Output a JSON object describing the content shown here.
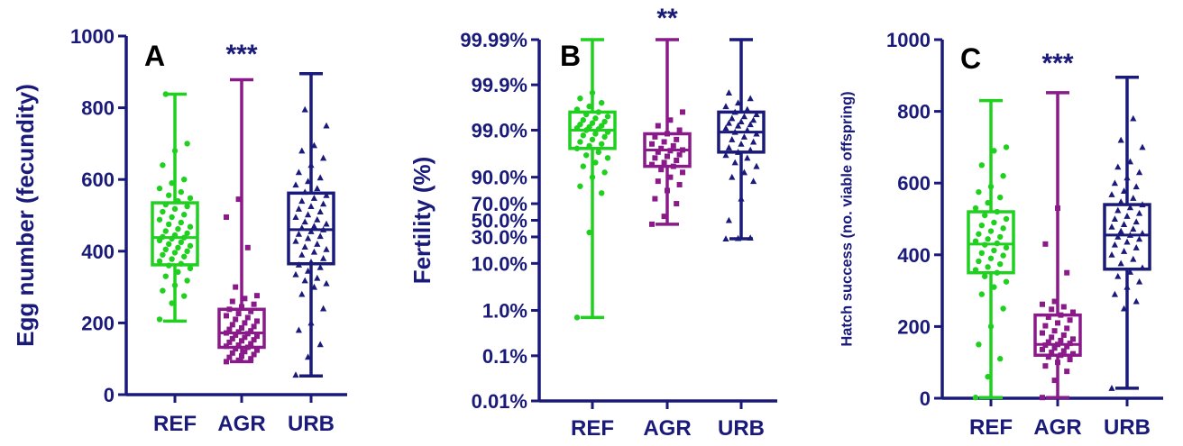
{
  "colors": {
    "axis": "#1a1a7a",
    "REF": "#1fd01f",
    "AGR": "#8a1a8a",
    "URB": "#1a1a7a",
    "stars": "#1a1a7a"
  },
  "chart_data": [
    {
      "type": "box",
      "panel_letter": "A",
      "ylabel": "Egg number (fecundity)",
      "categories": [
        "REF",
        "AGR",
        "URB"
      ],
      "ylim": [
        0,
        1000
      ],
      "yticks": [
        0,
        200,
        400,
        600,
        800,
        1000
      ],
      "yscale": "linear",
      "significance": {
        "category": "AGR",
        "label": "***"
      },
      "series": [
        {
          "name": "REF",
          "whisker_low": 205,
          "q1": 362,
          "median": 438,
          "q3": 535,
          "whisker_high": 838,
          "marker": "circle",
          "points": [
            210,
            255,
            275,
            290,
            305,
            318,
            330,
            342,
            352,
            360,
            365,
            372,
            378,
            385,
            390,
            396,
            400,
            405,
            410,
            415,
            420,
            425,
            430,
            435,
            438,
            440,
            445,
            450,
            456,
            462,
            468,
            475,
            480,
            488,
            495,
            502,
            510,
            518,
            525,
            530,
            540,
            548,
            556,
            565,
            575,
            590,
            600,
            640,
            680,
            700,
            838
          ]
        },
        {
          "name": "AGR",
          "whisker_low": 92,
          "q1": 132,
          "median": 172,
          "q3": 238,
          "whisker_high": 878,
          "marker": "square",
          "points": [
            92,
            96,
            100,
            104,
            108,
            112,
            116,
            120,
            124,
            128,
            132,
            135,
            138,
            142,
            146,
            150,
            153,
            156,
            160,
            163,
            166,
            170,
            172,
            175,
            178,
            182,
            186,
            190,
            195,
            200,
            205,
            210,
            215,
            220,
            226,
            232,
            238,
            245,
            252,
            260,
            268,
            276,
            300,
            410,
            495,
            545
          ]
        },
        {
          "name": "URB",
          "whisker_low": 52,
          "q1": 365,
          "median": 460,
          "q3": 562,
          "whisker_high": 895,
          "marker": "triangle",
          "points": [
            55,
            105,
            140,
            180,
            200,
            240,
            280,
            300,
            310,
            318,
            325,
            335,
            345,
            355,
            362,
            370,
            380,
            390,
            398,
            405,
            412,
            420,
            428,
            436,
            442,
            448,
            455,
            460,
            465,
            470,
            476,
            482,
            488,
            495,
            502,
            510,
            518,
            525,
            532,
            540,
            548,
            556,
            565,
            575,
            585,
            595,
            605,
            620,
            640,
            660,
            680,
            695,
            750,
            795
          ]
        }
      ]
    },
    {
      "type": "box",
      "panel_letter": "B",
      "ylabel": "Fertility (%)",
      "categories": [
        "REF",
        "AGR",
        "URB"
      ],
      "yscale": "logit",
      "yticks": [
        0.01,
        0.1,
        1.0,
        10.0,
        30.0,
        50.0,
        70.0,
        90.0,
        99.0,
        99.9,
        99.99
      ],
      "ytick_labels": [
        "0.01%",
        "0.1%",
        "1.0%",
        "10.0%",
        "30.0%",
        "50.0%",
        "70.0%",
        "90.0%",
        "99.0%",
        "99.9%",
        "99.99%"
      ],
      "significance": {
        "category": "AGR",
        "label": "**"
      },
      "series": [
        {
          "name": "REF",
          "whisker_low": 0.7,
          "q1": 97.5,
          "median": 99.0,
          "q3": 99.6,
          "whisker_high": 99.99,
          "marker": "circle",
          "points": [
            0.7,
            35,
            80,
            85,
            90,
            92,
            94,
            95,
            96,
            96.5,
            97,
            97.5,
            97.8,
            98,
            98.2,
            98.4,
            98.6,
            98.7,
            98.8,
            98.9,
            99.0,
            99.05,
            99.1,
            99.15,
            99.2,
            99.25,
            99.3,
            99.35,
            99.4,
            99.45,
            99.5,
            99.55,
            99.6,
            99.65,
            99.7,
            99.75,
            99.8,
            99.85
          ]
        },
        {
          "name": "AGR",
          "whisker_low": 45,
          "q1": 94,
          "median": 97.3,
          "q3": 98.8,
          "whisker_high": 99.99,
          "marker": "square",
          "points": [
            45,
            55,
            70,
            75,
            82,
            86,
            88,
            90,
            92,
            93,
            94,
            94.5,
            95,
            95.5,
            96,
            96.3,
            96.6,
            97,
            97.2,
            97.3,
            97.5,
            97.8,
            98,
            98.2,
            98.4,
            98.6,
            98.8,
            99,
            99.2,
            99.4,
            99.6
          ]
        },
        {
          "name": "URB",
          "whisker_low": 28,
          "q1": 97.0,
          "median": 98.9,
          "q3": 99.6,
          "whisker_high": 99.99,
          "marker": "triangle",
          "points": [
            28,
            28.5,
            29,
            50,
            75,
            88,
            90,
            92,
            94,
            95,
            96,
            96.5,
            97,
            97.3,
            97.6,
            98,
            98.2,
            98.4,
            98.6,
            98.8,
            98.9,
            99,
            99.1,
            99.2,
            99.25,
            99.3,
            99.35,
            99.4,
            99.45,
            99.5,
            99.55,
            99.6,
            99.65,
            99.7,
            99.75,
            99.8,
            99.85
          ]
        }
      ]
    },
    {
      "type": "box",
      "panel_letter": "C",
      "ylabel": "Hatch success (no. viable offspring)",
      "categories": [
        "REF",
        "AGR",
        "URB"
      ],
      "ylim": [
        0,
        1000
      ],
      "yticks": [
        0,
        200,
        400,
        600,
        800,
        1000
      ],
      "yscale": "linear",
      "significance": {
        "category": "AGR",
        "label": "***"
      },
      "series": [
        {
          "name": "REF",
          "whisker_low": 2,
          "q1": 350,
          "median": 430,
          "q3": 520,
          "whisker_high": 830,
          "marker": "circle",
          "points": [
            2,
            60,
            110,
            150,
            200,
            250,
            290,
            310,
            325,
            340,
            350,
            358,
            366,
            374,
            382,
            390,
            398,
            405,
            412,
            420,
            428,
            432,
            438,
            444,
            450,
            458,
            466,
            474,
            482,
            490,
            500,
            510,
            520,
            530,
            545,
            560,
            575,
            590,
            620,
            650,
            690,
            700
          ]
        },
        {
          "name": "AGR",
          "whisker_low": 2,
          "q1": 120,
          "median": 150,
          "q3": 232,
          "whisker_high": 852,
          "marker": "square",
          "points": [
            2,
            50,
            75,
            90,
            100,
            108,
            115,
            120,
            124,
            128,
            132,
            136,
            140,
            144,
            148,
            150,
            153,
            157,
            161,
            165,
            170,
            176,
            182,
            188,
            195,
            202,
            210,
            218,
            226,
            232,
            240,
            248,
            255,
            262,
            270,
            350,
            430,
            530
          ]
        },
        {
          "name": "URB",
          "whisker_low": 28,
          "q1": 360,
          "median": 455,
          "q3": 540,
          "whisker_high": 895,
          "marker": "triangle",
          "points": [
            28,
            250,
            270,
            290,
            310,
            325,
            340,
            352,
            364,
            376,
            388,
            400,
            410,
            420,
            428,
            436,
            444,
            450,
            455,
            460,
            466,
            472,
            478,
            485,
            492,
            500,
            508,
            516,
            524,
            532,
            540,
            548,
            558,
            568,
            578,
            590,
            600,
            615,
            630,
            645,
            660,
            700,
            720,
            780
          ]
        }
      ]
    }
  ]
}
